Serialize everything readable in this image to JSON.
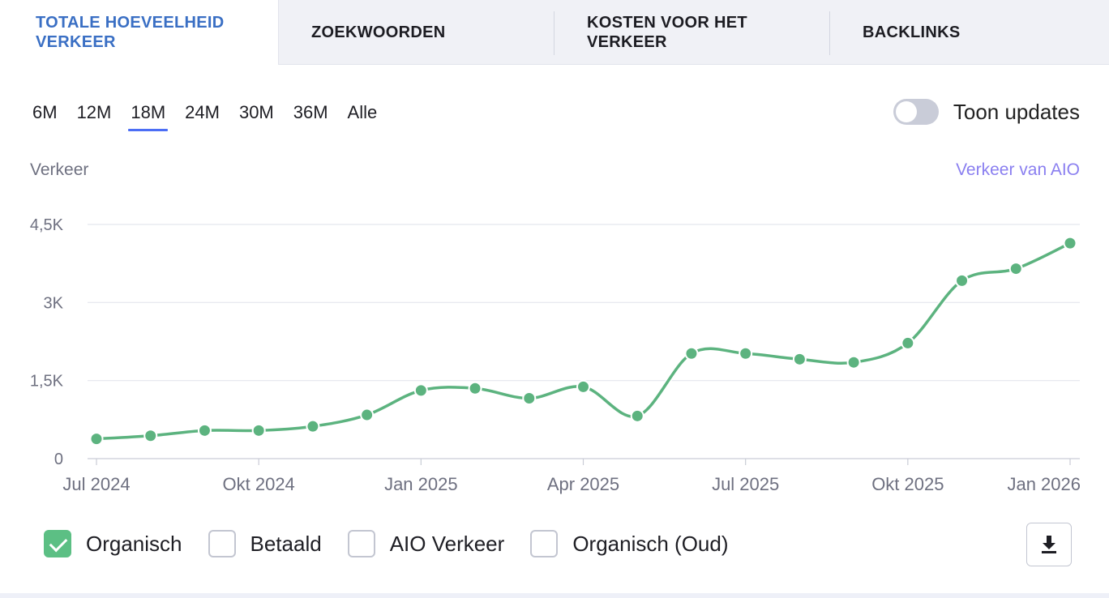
{
  "tabs": [
    {
      "label": "TOTALE HOEVEELHEID VERKEER",
      "active": true
    },
    {
      "label": "ZOEKWOORDEN",
      "active": false
    },
    {
      "label": "KOSTEN VOOR HET VERKEER",
      "active": false
    },
    {
      "label": "BACKLINKS",
      "active": false
    }
  ],
  "periods": [
    "6M",
    "12M",
    "18M",
    "24M",
    "30M",
    "36M",
    "Alle"
  ],
  "active_period": "18M",
  "toggle": {
    "label": "Toon updates",
    "on": false
  },
  "aio_link": "Verkeer van AIO",
  "legend": [
    {
      "label": "Organisch",
      "checked": true
    },
    {
      "label": "Betaald",
      "checked": false
    },
    {
      "label": "AIO Verkeer",
      "checked": false
    },
    {
      "label": "Organisch (Oud)",
      "checked": false
    }
  ],
  "icons": {
    "download": "download-icon"
  },
  "colors": {
    "line": "#5cb37f",
    "accent": "#4c6ef5",
    "tab_active": "#3a6fc4",
    "aio": "#8a7ff0"
  },
  "chart_data": {
    "type": "line",
    "ylabel": "Verkeer",
    "ylim": [
      0,
      4500
    ],
    "yticks": [
      0,
      1500,
      3000,
      4500
    ],
    "ytick_labels": [
      "0",
      "1,5K",
      "3K",
      "4,5K"
    ],
    "xtick_labels": [
      "Jul 2024",
      "Okt 2024",
      "Jan 2025",
      "Apr 2025",
      "Jul 2025",
      "Okt 2025",
      "Jan 2026"
    ],
    "x": [
      "2024-07",
      "2024-08",
      "2024-09",
      "2024-10",
      "2024-11",
      "2024-12",
      "2025-01",
      "2025-02",
      "2025-03",
      "2025-04",
      "2025-05",
      "2025-06",
      "2025-07",
      "2025-08",
      "2025-09",
      "2025-10",
      "2025-11",
      "2025-12",
      "2026-01"
    ],
    "series": [
      {
        "name": "Organisch",
        "values": [
          380,
          440,
          540,
          540,
          620,
          840,
          1310,
          1350,
          1160,
          1380,
          820,
          2020,
          2020,
          1910,
          1850,
          2220,
          3420,
          3650,
          4140
        ]
      }
    ],
    "grid": true,
    "legend_position": "bottom"
  }
}
